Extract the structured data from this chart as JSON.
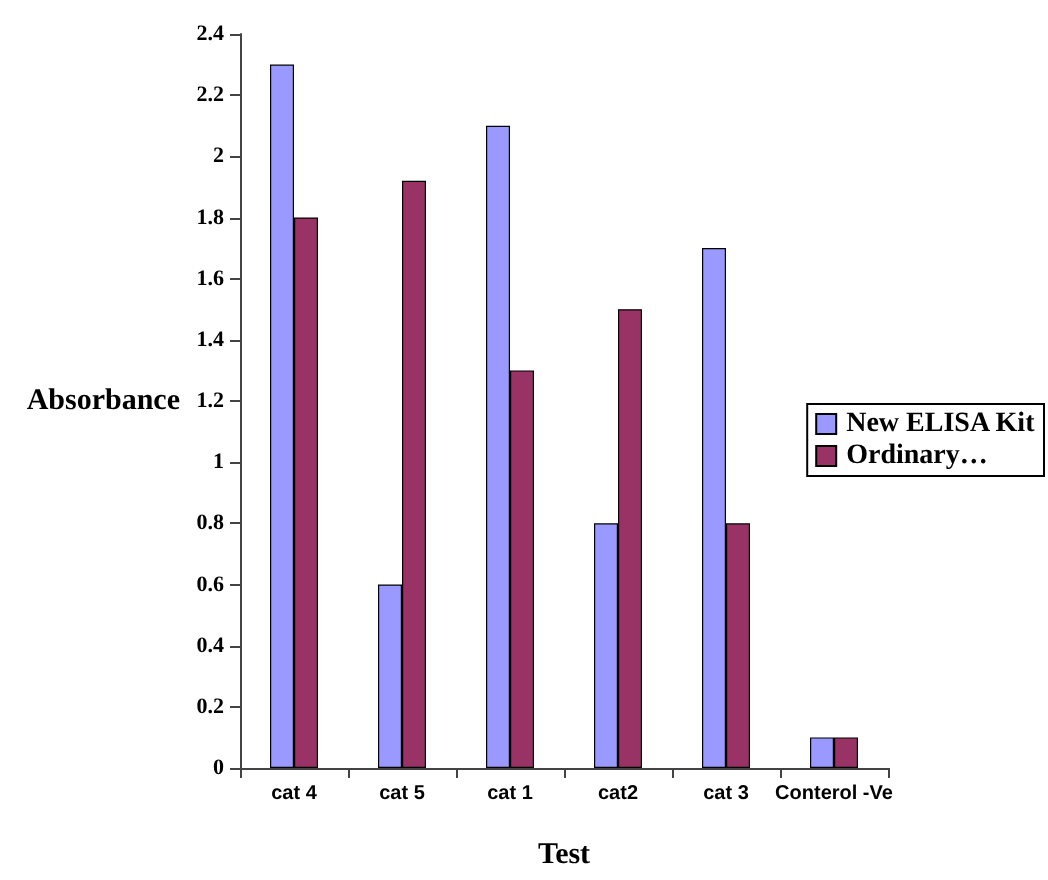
{
  "chart_data": {
    "type": "bar",
    "xlabel": "Test",
    "ylabel": "Absorbance",
    "categories": [
      "cat 4",
      "cat 5",
      "cat 1",
      "cat2",
      "cat 3",
      "Conterol -Ve"
    ],
    "series": [
      {
        "name": "New ELISA Kit",
        "color": "#9999ff",
        "values": [
          2.3,
          0.6,
          2.1,
          0.8,
          1.7,
          0.1
        ]
      },
      {
        "name": "Ordinary…",
        "color": "#993366",
        "values": [
          1.8,
          1.92,
          1.3,
          1.5,
          0.8,
          0.1
        ]
      }
    ],
    "ylim": [
      0,
      2.4
    ],
    "yticks": [
      0,
      0.2,
      0.4,
      0.6,
      0.8,
      1,
      1.2,
      1.4,
      1.6,
      1.8,
      2,
      2.2,
      2.4
    ],
    "grid": false,
    "legend": "right"
  }
}
